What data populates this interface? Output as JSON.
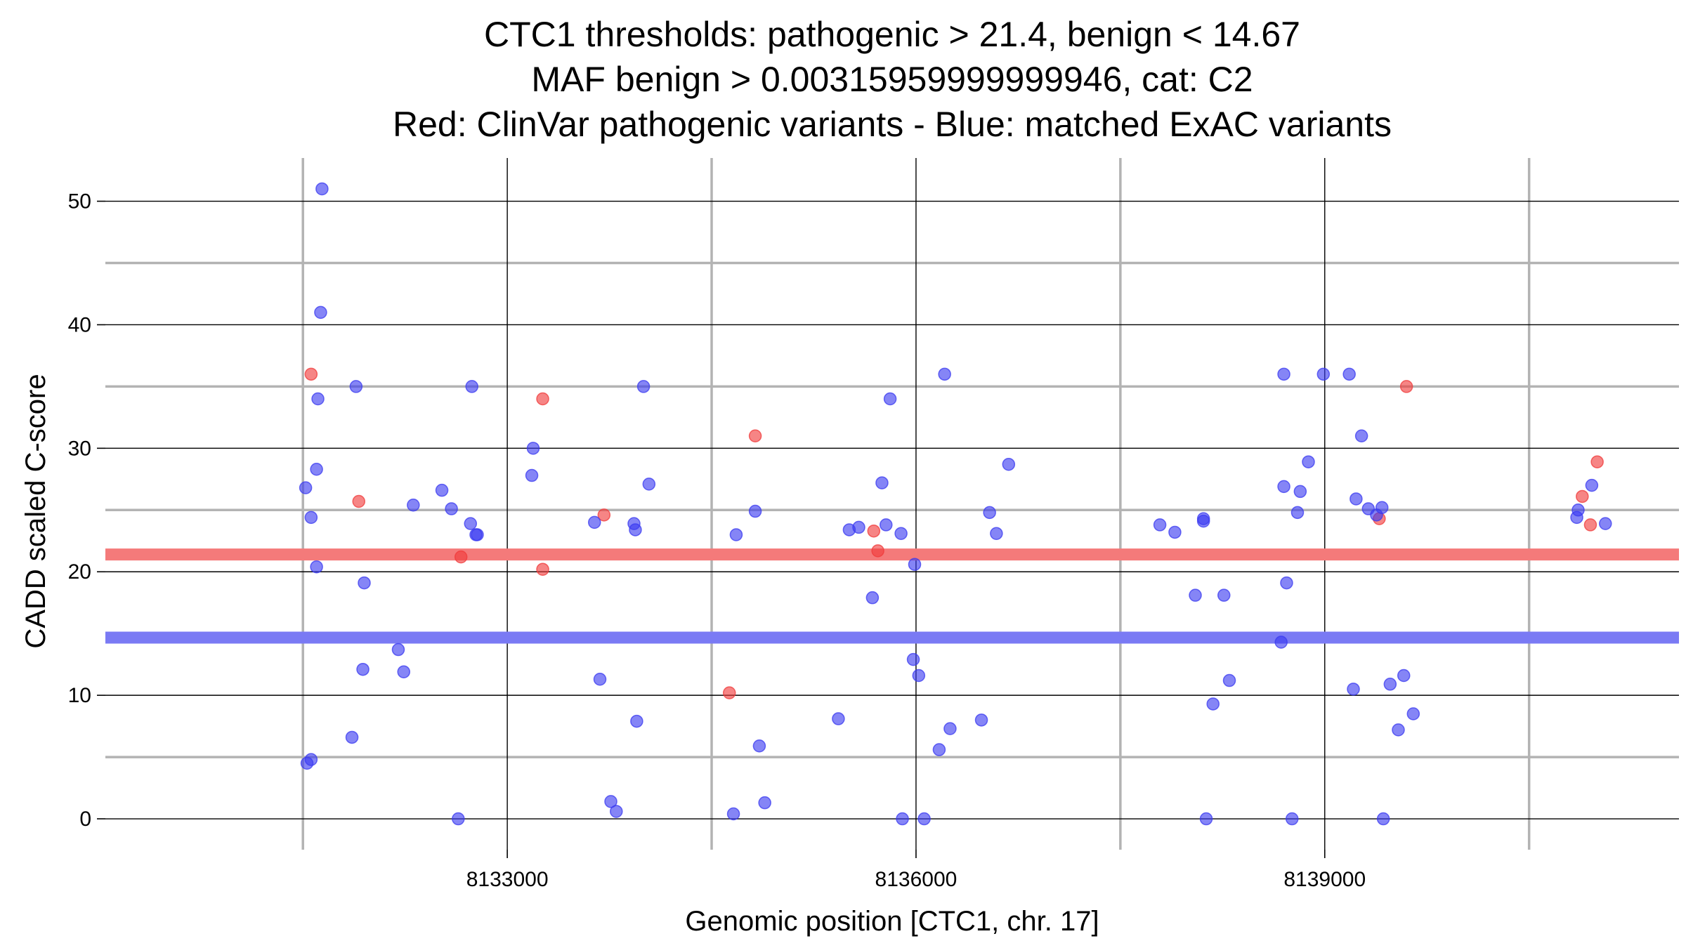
{
  "chart_data": {
    "type": "scatter",
    "title_lines": [
      "CTC1 thresholds: pathogenic > 21.4, benign < 14.67",
      "MAF benign > 0.00315959999999946, cat: C2",
      "Red: ClinVar pathogenic variants - Blue: matched ExAC variants"
    ],
    "xlabel": "Genomic position [CTC1, chr. 17]",
    "ylabel": "CADD scaled C-score",
    "xlim": [
      8130050,
      8141600
    ],
    "ylim": [
      -2.5,
      53.5
    ],
    "x_ticks": [
      8133000,
      8136000,
      8139000
    ],
    "x_tick_labels": [
      "8133000",
      "8136000",
      "8139000"
    ],
    "x_minor_grid": [
      8131500,
      8134500,
      8137500,
      8140500
    ],
    "y_ticks": [
      0,
      10,
      20,
      30,
      40,
      50
    ],
    "y_tick_labels": [
      "0",
      "10",
      "20",
      "30",
      "40",
      "50"
    ],
    "y_minor_grid": [
      5,
      15,
      25,
      35,
      45
    ],
    "grid": true,
    "thresholds": [
      {
        "name": "pathogenic",
        "value": 21.4,
        "color": "#f47a7a"
      },
      {
        "name": "benign",
        "value": 14.67,
        "color": "#7a7af4"
      }
    ],
    "series": [
      {
        "name": "ClinVar pathogenic variants",
        "color": "#f03a3a",
        "points": [
          {
            "x": 8131560,
            "y": 36
          },
          {
            "x": 8131910,
            "y": 25.7
          },
          {
            "x": 8132660,
            "y": 21.2
          },
          {
            "x": 8133260,
            "y": 34
          },
          {
            "x": 8133260,
            "y": 20.2
          },
          {
            "x": 8133710,
            "y": 24.6
          },
          {
            "x": 8134630,
            "y": 10.2
          },
          {
            "x": 8134820,
            "y": 31
          },
          {
            "x": 8135690,
            "y": 23.3
          },
          {
            "x": 8135720,
            "y": 21.7
          },
          {
            "x": 8139400,
            "y": 24.3
          },
          {
            "x": 8139600,
            "y": 35
          },
          {
            "x": 8140890,
            "y": 26.1
          },
          {
            "x": 8140950,
            "y": 23.8
          },
          {
            "x": 8141000,
            "y": 28.9
          }
        ]
      },
      {
        "name": "matched ExAC variants",
        "color": "#3a3af0",
        "points": [
          {
            "x": 8131530,
            "y": 4.5
          },
          {
            "x": 8131560,
            "y": 4.8
          },
          {
            "x": 8131520,
            "y": 26.8
          },
          {
            "x": 8131560,
            "y": 24.4
          },
          {
            "x": 8131600,
            "y": 20.4
          },
          {
            "x": 8131600,
            "y": 28.3
          },
          {
            "x": 8131610,
            "y": 34
          },
          {
            "x": 8131630,
            "y": 41
          },
          {
            "x": 8131640,
            "y": 51
          },
          {
            "x": 8131860,
            "y": 6.6
          },
          {
            "x": 8131890,
            "y": 35
          },
          {
            "x": 8131940,
            "y": 12.1
          },
          {
            "x": 8131950,
            "y": 19.1
          },
          {
            "x": 8132200,
            "y": 13.7
          },
          {
            "x": 8132240,
            "y": 11.9
          },
          {
            "x": 8132310,
            "y": 25.4
          },
          {
            "x": 8132520,
            "y": 26.6
          },
          {
            "x": 8132590,
            "y": 25.1
          },
          {
            "x": 8132640,
            "y": 0
          },
          {
            "x": 8132740,
            "y": 35
          },
          {
            "x": 8132730,
            "y": 23.9
          },
          {
            "x": 8132770,
            "y": 23
          },
          {
            "x": 8132780,
            "y": 23
          },
          {
            "x": 8133190,
            "y": 30
          },
          {
            "x": 8133180,
            "y": 27.8
          },
          {
            "x": 8133640,
            "y": 24
          },
          {
            "x": 8133680,
            "y": 11.3
          },
          {
            "x": 8133760,
            "y": 1.4
          },
          {
            "x": 8133800,
            "y": 0.6
          },
          {
            "x": 8133930,
            "y": 23.9
          },
          {
            "x": 8133940,
            "y": 23.4
          },
          {
            "x": 8133950,
            "y": 7.9
          },
          {
            "x": 8134000,
            "y": 35
          },
          {
            "x": 8134040,
            "y": 27.1
          },
          {
            "x": 8134660,
            "y": 0.4
          },
          {
            "x": 8134680,
            "y": 23
          },
          {
            "x": 8134820,
            "y": 24.9
          },
          {
            "x": 8134850,
            "y": 5.9
          },
          {
            "x": 8134890,
            "y": 1.3
          },
          {
            "x": 8135430,
            "y": 8.1
          },
          {
            "x": 8135510,
            "y": 23.4
          },
          {
            "x": 8135580,
            "y": 23.6
          },
          {
            "x": 8135680,
            "y": 17.9
          },
          {
            "x": 8135750,
            "y": 27.2
          },
          {
            "x": 8135780,
            "y": 23.8
          },
          {
            "x": 8135810,
            "y": 34
          },
          {
            "x": 8135890,
            "y": 23.1
          },
          {
            "x": 8135900,
            "y": 0
          },
          {
            "x": 8135980,
            "y": 12.9
          },
          {
            "x": 8135990,
            "y": 20.6
          },
          {
            "x": 8136020,
            "y": 11.6
          },
          {
            "x": 8136170,
            "y": 5.6
          },
          {
            "x": 8136210,
            "y": 36
          },
          {
            "x": 8136250,
            "y": 7.3
          },
          {
            "x": 8136540,
            "y": 24.8
          },
          {
            "x": 8136590,
            "y": 23.1
          },
          {
            "x": 8136060,
            "y": 0
          },
          {
            "x": 8136480,
            "y": 8
          },
          {
            "x": 8136680,
            "y": 28.7
          },
          {
            "x": 8137790,
            "y": 23.8
          },
          {
            "x": 8137900,
            "y": 23.2
          },
          {
            "x": 8138050,
            "y": 18.1
          },
          {
            "x": 8138110,
            "y": 24.1
          },
          {
            "x": 8138110,
            "y": 24.3
          },
          {
            "x": 8138130,
            "y": 0
          },
          {
            "x": 8138180,
            "y": 9.3
          },
          {
            "x": 8138260,
            "y": 18.1
          },
          {
            "x": 8138300,
            "y": 11.2
          },
          {
            "x": 8138680,
            "y": 14.3
          },
          {
            "x": 8138700,
            "y": 36
          },
          {
            "x": 8138700,
            "y": 26.9
          },
          {
            "x": 8138720,
            "y": 19.1
          },
          {
            "x": 8138760,
            "y": 0
          },
          {
            "x": 8138800,
            "y": 24.8
          },
          {
            "x": 8138820,
            "y": 26.5
          },
          {
            "x": 8138880,
            "y": 28.9
          },
          {
            "x": 8138990,
            "y": 36
          },
          {
            "x": 8139180,
            "y": 36
          },
          {
            "x": 8139210,
            "y": 10.5
          },
          {
            "x": 8139230,
            "y": 25.9
          },
          {
            "x": 8139270,
            "y": 31
          },
          {
            "x": 8139320,
            "y": 25.1
          },
          {
            "x": 8139380,
            "y": 24.6
          },
          {
            "x": 8139420,
            "y": 25.2
          },
          {
            "x": 8139430,
            "y": 0
          },
          {
            "x": 8139480,
            "y": 10.9
          },
          {
            "x": 8139540,
            "y": 7.2
          },
          {
            "x": 8139580,
            "y": 11.6
          },
          {
            "x": 8139650,
            "y": 8.5
          },
          {
            "x": 8140850,
            "y": 24.4
          },
          {
            "x": 8140860,
            "y": 25
          },
          {
            "x": 8140960,
            "y": 27
          },
          {
            "x": 8141060,
            "y": 23.9
          }
        ]
      }
    ]
  }
}
